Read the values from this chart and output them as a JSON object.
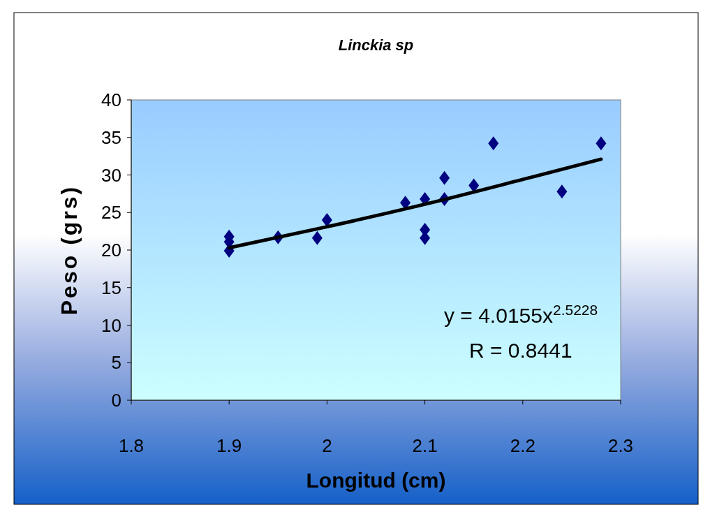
{
  "chart_data": {
    "type": "scatter",
    "title": "Linckia sp",
    "xlabel": "Longitud (cm)",
    "ylabel": "Peso (grs)",
    "xlim": [
      1.8,
      2.3
    ],
    "xticks": [
      1.8,
      1.9,
      2,
      2.1,
      2.2,
      2.3
    ],
    "ylim": [
      0,
      40
    ],
    "yticks": [
      0,
      5,
      10,
      15,
      20,
      25,
      30,
      35,
      40
    ],
    "grid": false,
    "marker": "diamond",
    "series": [
      {
        "color": "#000080",
        "x": [
          1.9,
          1.9,
          1.9,
          1.95,
          1.99,
          2.0,
          2.08,
          2.1,
          2.1,
          2.1,
          2.12,
          2.12,
          2.15,
          2.17,
          2.24,
          2.28
        ],
        "values": [
          21.8,
          21.1,
          19.9,
          21.7,
          21.6,
          24.0,
          26.3,
          26.8,
          22.7,
          21.6,
          29.6,
          26.8,
          28.6,
          34.2,
          27.8,
          34.2
        ]
      },
      {
        "type": "line",
        "marker": "none",
        "color": "#000000",
        "x": [
          1.9,
          2.0,
          2.1,
          2.2,
          2.28
        ],
        "values": [
          20.3,
          23.1,
          26.1,
          29.4,
          32.1
        ]
      }
    ],
    "annotations": [
      "y = 4.0155x$^{2.5228}$",
      "R = 0.8441"
    ]
  }
}
